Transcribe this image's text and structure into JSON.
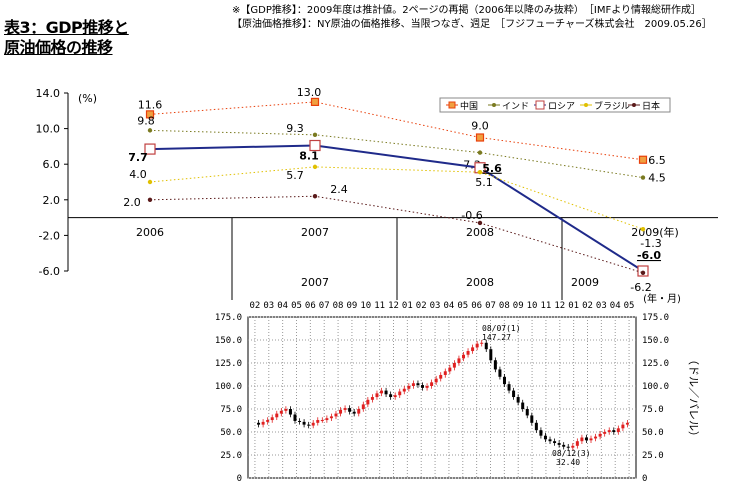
{
  "title": {
    "line1": "表3：GDP推移と",
    "line2": "原油価格の推移"
  },
  "notes": [
    "※【GDP推移】：2009年度は推計値。2ページの再掲（2006年以降のみ抜粋）　［IMFより情報総研作成］",
    "【原油価格推移】：NY原油の価格推移、当限つなぎ、週足　［フジフューチャーズ株式会社　2009.05.26］"
  ],
  "chart_data": [
    {
      "type": "line",
      "title": "",
      "ylabel": "(%)",
      "xlabel": "(年)",
      "ylim": [
        -6.0,
        14.0
      ],
      "yticks": [
        "14.0",
        "10.0",
        "6.0",
        "2.0",
        "-2.0",
        "-6.0"
      ],
      "categories": [
        "2006",
        "2007",
        "2008",
        "2009"
      ],
      "legend": {
        "position": "top-right",
        "entries": [
          "中国",
          "インド",
          "ロシア",
          "ブラジル",
          "日本"
        ]
      },
      "series": [
        {
          "name": "中国",
          "color": "#e8400c",
          "values": [
            11.6,
            13.0,
            9.0,
            6.5
          ],
          "labels": [
            "11.6",
            "13.0",
            "9.0",
            "6.5"
          ]
        },
        {
          "name": "インド",
          "color": "#7a7a20",
          "values": [
            9.8,
            9.3,
            7.3,
            4.5
          ],
          "labels": [
            "9.8",
            "9.3",
            "7.3",
            "4.5"
          ]
        },
        {
          "name": "ロシア",
          "color": "#1f2a8a",
          "values": [
            7.7,
            8.1,
            5.6,
            -6.0
          ],
          "labels": [
            "7.7",
            "8.1",
            "5.6",
            "-6.0"
          ]
        },
        {
          "name": "ブラジル",
          "color": "#e0c000",
          "values": [
            4.0,
            5.7,
            5.1,
            -1.3
          ],
          "labels": [
            "4.0",
            "5.7",
            "5.1",
            "-1.3"
          ]
        },
        {
          "name": "日本",
          "color": "#5a1a1a",
          "values": [
            2.0,
            2.4,
            -0.6,
            -6.2
          ],
          "labels": [
            "2.0",
            "2.4",
            "-0.6",
            "-6.2"
          ]
        }
      ],
      "bottom_year_labels": [
        "2007",
        "2008",
        "2009"
      ]
    },
    {
      "type": "line",
      "title": "",
      "ylabel": "（ドル／バレル）",
      "xlabel": "(年・月)",
      "ylim": [
        0,
        175
      ],
      "yticks": [
        "175.0",
        "150.0",
        "125.0",
        "100.0",
        "75.0",
        "50.0",
        "25.0",
        "0"
      ],
      "month_labels": [
        "02",
        "03",
        "04",
        "05",
        "06",
        "07",
        "08",
        "09",
        "10",
        "11",
        "12",
        "01",
        "02",
        "03",
        "04",
        "05",
        "06",
        "07",
        "08",
        "09",
        "10",
        "11",
        "12",
        "01",
        "02",
        "03",
        "04",
        "05"
      ],
      "annotations": [
        {
          "date": "08/07(1)",
          "value": "147.27"
        },
        {
          "date": "08/12(3)",
          "value": "32.40"
        }
      ],
      "series": [
        {
          "name": "",
          "values": [
            60,
            58,
            61,
            63,
            66,
            70,
            73,
            75,
            69,
            62,
            61,
            58,
            57,
            60,
            63,
            63,
            65,
            67,
            70,
            74,
            76,
            72,
            70,
            75,
            80,
            85,
            88,
            92,
            95,
            91,
            88,
            90,
            94,
            97,
            100,
            103,
            101,
            98,
            100,
            104,
            108,
            112,
            116,
            120,
            125,
            130,
            134,
            138,
            142,
            146,
            147,
            140,
            128,
            118,
            110,
            102,
            95,
            88,
            82,
            75,
            68,
            60,
            52,
            46,
            42,
            40,
            38,
            36,
            34,
            33,
            35,
            40,
            44,
            41,
            43,
            45,
            48,
            50,
            52,
            50,
            54,
            58,
            60
          ]
        }
      ]
    }
  ]
}
